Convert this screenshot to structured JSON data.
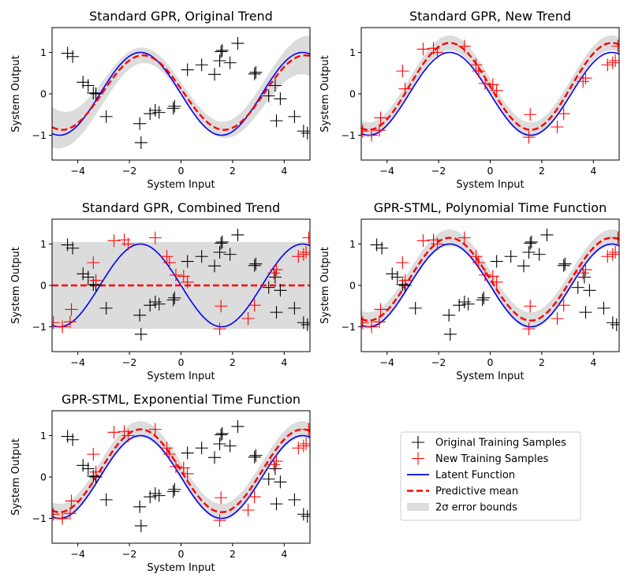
{
  "chart_data": {
    "type": "line",
    "xlabel": "System Input",
    "ylabel": "System Output",
    "xlim": [
      -5,
      5
    ],
    "ylim": [
      -1.6,
      1.6
    ],
    "xticks": [
      -4,
      -2,
      0,
      2,
      4
    ],
    "yticks": [
      -1,
      0,
      1
    ],
    "latent_function": "sin(-x)",
    "legend": {
      "placement": "lower-right",
      "entries": [
        {
          "key": "original",
          "label": "Original Training Samples",
          "color": "#000000",
          "marker": "plus"
        },
        {
          "key": "new",
          "label": "New Training Samples",
          "color": "#ff0000",
          "marker": "plus"
        },
        {
          "key": "latent",
          "label": "Latent Function",
          "color": "#0000ff",
          "marker": "line"
        },
        {
          "key": "mean",
          "label": "Predictive mean",
          "color": "#ff0000",
          "marker": "dashed"
        },
        {
          "key": "bounds",
          "label": "2σ error bounds",
          "color": "#dddddd",
          "marker": "band"
        }
      ]
    },
    "original_samples": {
      "x": [
        -4.4,
        -4.2,
        -3.8,
        -3.6,
        -3.4,
        -3.3,
        -2.9,
        -1.6,
        -1.55,
        -1.2,
        -1.0,
        -0.85,
        -0.3,
        -0.25,
        0.25,
        0.8,
        1.3,
        1.5,
        1.55,
        1.6,
        1.9,
        2.2,
        2.85,
        2.9,
        3.4,
        3.65,
        3.7,
        3.85,
        4.4,
        4.75,
        4.9
      ],
      "y": [
        0.98,
        0.9,
        0.28,
        0.2,
        0.02,
        0.0,
        -0.55,
        -0.72,
        -1.18,
        -0.48,
        -0.4,
        -0.45,
        -0.35,
        -0.3,
        0.58,
        0.7,
        0.47,
        0.8,
        1.02,
        1.05,
        0.75,
        1.22,
        0.48,
        0.52,
        -0.05,
        0.2,
        -0.65,
        -0.12,
        -0.55,
        -0.9,
        -0.95
      ]
    },
    "new_samples": {
      "x": [
        -4.95,
        -4.6,
        -4.3,
        -4.25,
        -3.4,
        -3.3,
        -2.6,
        -2.2,
        -2.05,
        -1.0,
        -0.55,
        -0.45,
        -0.2,
        0.1,
        0.25,
        1.5,
        1.55,
        2.6,
        2.85,
        3.6,
        3.7,
        4.55,
        4.75,
        4.85,
        4.95
      ],
      "y": [
        -0.9,
        -1.0,
        -0.88,
        -0.58,
        0.55,
        0.12,
        1.08,
        1.1,
        1.0,
        1.15,
        0.7,
        0.55,
        0.25,
        0.22,
        0.08,
        -1.05,
        -0.5,
        -0.8,
        -0.48,
        0.3,
        0.38,
        0.7,
        0.75,
        0.8,
        1.15
      ]
    },
    "panels": [
      {
        "title": "Standard GPR, Original Trend",
        "samples": [
          "original"
        ],
        "mean": {
          "type": "sin",
          "amp": 0.9,
          "off": 0.03,
          "shift": 0.1
        },
        "band": {
          "type": "growing",
          "base": 0.16,
          "grow": 0.11
        }
      },
      {
        "title": "Standard GPR, New Trend",
        "samples": [
          "new"
        ],
        "mean": {
          "type": "sin",
          "amp": 1.05,
          "off": 0.18,
          "shift": 0.0
        },
        "band": {
          "type": "constant",
          "w": 0.18
        }
      },
      {
        "title": "Standard GPR, Combined Trend",
        "samples": [
          "original",
          "new"
        ],
        "mean": {
          "type": "flat"
        },
        "band": {
          "type": "constant",
          "w": 1.05
        }
      },
      {
        "title": "GPR-STML, Polynomial Time Function",
        "samples": [
          "original",
          "new"
        ],
        "mean": {
          "type": "sin",
          "amp": 1.0,
          "off": 0.15,
          "shift": 0.0
        },
        "band": {
          "type": "constant",
          "w": 0.2
        }
      },
      {
        "title": "GPR-STML, Exponential Time Function",
        "samples": [
          "original",
          "new"
        ],
        "mean": {
          "type": "sin",
          "amp": 1.0,
          "off": 0.15,
          "shift": 0.0
        },
        "band": {
          "type": "constant",
          "w": 0.2
        }
      }
    ]
  }
}
